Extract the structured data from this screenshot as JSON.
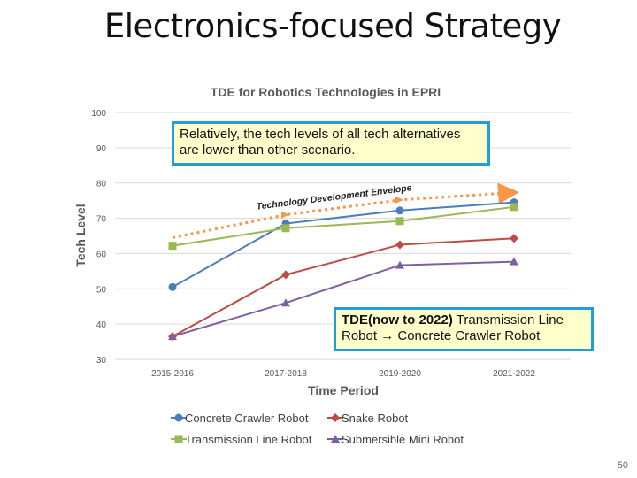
{
  "slide": {
    "title": "Electronics-focused Strategy",
    "page_number": "50"
  },
  "callouts": {
    "note1": "Relatively, the tech levels of all tech alternatives are lower than other scenario.",
    "note2_bold": "TDE(now to 2022)",
    "note2_rest": " Transmission Line Robot → Concrete Crawler Robot"
  },
  "chart_data": {
    "type": "line",
    "title": "TDE for Robotics Technologies in EPRI",
    "xlabel": "Time Period",
    "ylabel": "Tech Level",
    "categories": [
      "2015-2016",
      "2017-2018",
      "2019-2020",
      "2021-2022"
    ],
    "ylim": [
      30,
      100
    ],
    "yticks": [
      30,
      40,
      50,
      60,
      70,
      80,
      90,
      100
    ],
    "grid": true,
    "legend_position": "bottom",
    "series": [
      {
        "name": "Concrete Crawler Robot",
        "values": [
          50.5,
          68.5,
          72.2,
          74.5
        ],
        "color": "#4a7ebb",
        "marker": "circle"
      },
      {
        "name": "Snake Robot",
        "values": [
          36.5,
          54,
          62.5,
          64.3
        ],
        "color": "#be4b48",
        "marker": "diamond"
      },
      {
        "name": "Transmission Line Robot",
        "values": [
          62.2,
          67.2,
          69.2,
          73.2
        ],
        "color": "#98b954",
        "marker": "square"
      },
      {
        "name": "Submersible Mini Robot",
        "values": [
          36.5,
          46,
          56.7,
          57.7
        ],
        "color": "#7d60a0",
        "marker": "triangle"
      }
    ],
    "annotations": [
      {
        "text": "Technology Development Envelope",
        "color": "#222222"
      }
    ],
    "envelope": {
      "values": [
        64.5,
        71,
        75.2,
        77.3
      ],
      "color": "#f79646",
      "style": "dotted-arrow"
    }
  }
}
